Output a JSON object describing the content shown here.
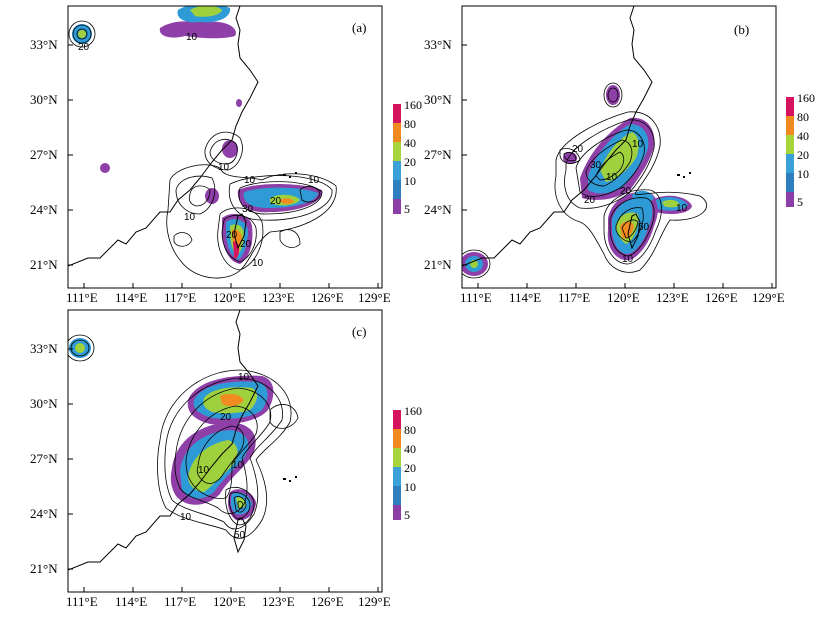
{
  "panels": [
    {
      "id": "a",
      "label": "(a)"
    },
    {
      "id": "b",
      "label": "(b)"
    },
    {
      "id": "c",
      "label": "(c)"
    }
  ],
  "axes": {
    "x_ticks": [
      "111°E",
      "114°E",
      "117°E",
      "120°E",
      "123°E",
      "126°E",
      "129°E"
    ],
    "y_ticks": [
      "33°N",
      "30°N",
      "27°N",
      "24°N",
      "21°N"
    ]
  },
  "legend": {
    "levels": [
      "160",
      "80",
      "40",
      "20",
      "10",
      "5"
    ],
    "colors": [
      "#d6135f",
      "#f08a1e",
      "#a7d43a",
      "#3aa0d8",
      "#8b3fa6",
      "#8b3fa6"
    ]
  },
  "shade_colors": {
    "purple": "#8e3fa8",
    "blue": "#2f9bd6",
    "green": "#9fd13f",
    "orange": "#f28b20",
    "red": "#d7145e"
  },
  "contour_labels": {
    "a": [
      "20",
      "10",
      "10",
      "10",
      "10",
      "20",
      "10",
      "30",
      "20",
      "20",
      "10"
    ],
    "b": [
      "20",
      "30",
      "10",
      "10",
      "20",
      "20",
      "10",
      "50",
      "10"
    ],
    "c": [
      "10",
      "20",
      "10",
      "10",
      "10",
      "50"
    ]
  }
}
